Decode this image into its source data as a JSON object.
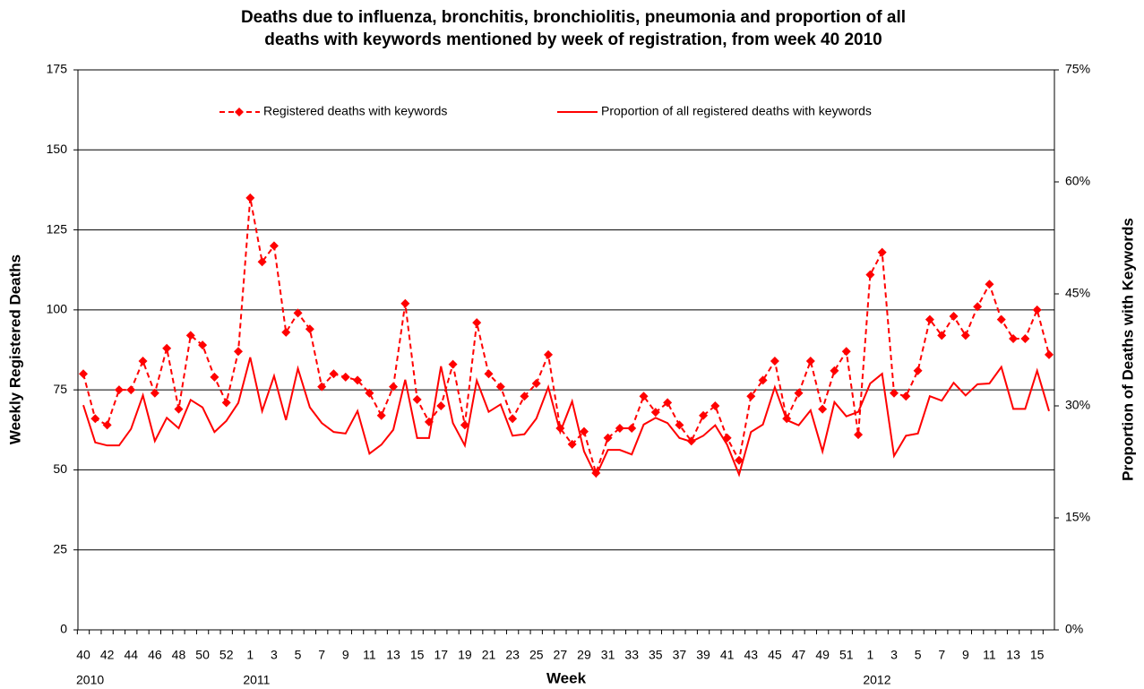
{
  "chart_data": {
    "type": "line",
    "title": [
      "Deaths due to influenza, bronchitis, bronchiolitis, pneumonia and proportion of all",
      "deaths with keywords mentioned by week of registration, from week 40 2010"
    ],
    "x_label": "Week",
    "y_label": "Weekly Registered Deaths",
    "y2_label": "Proportion of Deaths with Keywords",
    "year_labels": [
      "2010",
      "2011",
      "2012"
    ],
    "categories": [
      "40",
      null,
      "42",
      null,
      "44",
      null,
      "46",
      null,
      "48",
      null,
      "50",
      null,
      "52",
      null,
      "1",
      null,
      "3",
      null,
      "5",
      null,
      "7",
      null,
      "9",
      null,
      "11",
      null,
      "13",
      null,
      "15",
      null,
      "17",
      null,
      "19",
      null,
      "21",
      null,
      "23",
      null,
      "25",
      null,
      "27",
      null,
      "29",
      null,
      "31",
      null,
      "33",
      null,
      "35",
      null,
      "37",
      null,
      "39",
      null,
      "41",
      null,
      "43",
      null,
      "45",
      null,
      "47",
      null,
      "49",
      null,
      "51",
      null,
      "1",
      null,
      "3",
      null,
      "5",
      null,
      "7",
      null,
      "9",
      null,
      "11",
      null,
      "13",
      null,
      "15",
      null
    ],
    "series": [
      {
        "name": "Registered deaths with keywords",
        "color": "#ff0000",
        "style": "dashed",
        "marker": "diamond",
        "values": [
          80,
          66,
          64,
          75,
          75,
          84,
          74,
          88,
          69,
          92,
          89,
          79,
          71,
          87,
          135,
          115,
          120,
          93,
          99,
          94,
          76,
          80,
          79,
          78,
          74,
          67,
          76,
          102,
          72,
          65,
          70,
          83,
          64,
          96,
          80,
          76,
          66,
          73,
          77,
          86,
          63,
          58,
          62,
          49,
          60,
          63,
          63,
          73,
          68,
          71,
          64,
          59,
          67,
          70,
          60,
          53,
          73,
          78,
          84,
          66,
          74,
          84,
          69,
          81,
          87,
          61,
          111,
          118,
          74,
          73,
          81,
          97,
          92,
          98,
          92,
          101,
          108,
          97,
          91,
          91,
          100,
          86
        ]
      },
      {
        "name": "Proportion of all registered deaths with keywords",
        "color": "#ff0000",
        "style": "solid",
        "axis": "y2",
        "values": [
          30.1,
          25.1,
          24.7,
          24.7,
          26.9,
          31.4,
          25.3,
          28.4,
          27.0,
          30.8,
          29.8,
          26.5,
          28.0,
          30.4,
          36.5,
          29.3,
          34.0,
          28.1,
          35.0,
          29.8,
          27.7,
          26.5,
          26.3,
          29.3,
          23.6,
          24.8,
          26.8,
          33.5,
          25.7,
          25.7,
          35.3,
          27.7,
          24.7,
          33.4,
          29.2,
          30.2,
          26.0,
          26.2,
          28.3,
          32.5,
          26.5,
          30.6,
          23.9,
          20.6,
          24.1,
          24.1,
          23.5,
          27.5,
          28.4,
          27.7,
          25.7,
          25.2,
          26.0,
          27.4,
          24.8,
          20.8,
          26.5,
          27.5,
          32.5,
          28.1,
          27.4,
          29.4,
          23.9,
          30.5,
          28.6,
          29.2,
          33.0,
          34.3,
          23.3,
          26.0,
          26.3,
          31.3,
          30.7,
          33.1,
          31.4,
          32.9,
          33.0,
          35.2,
          29.6,
          29.6,
          34.7,
          29.3
        ]
      }
    ],
    "ylim": [
      0,
      175
    ],
    "yticks": [
      0,
      25,
      50,
      75,
      100,
      125,
      150,
      175
    ],
    "y2lim": [
      0,
      75
    ],
    "y2ticks": [
      {
        "value": 0,
        "label": "0%"
      },
      {
        "value": 15,
        "label": "15%"
      },
      {
        "value": 30,
        "label": "30%"
      },
      {
        "value": 45,
        "label": "45%"
      },
      {
        "value": 60,
        "label": "60%"
      },
      {
        "value": 75,
        "label": "75%"
      }
    ],
    "grid": true,
    "legend": "top"
  }
}
